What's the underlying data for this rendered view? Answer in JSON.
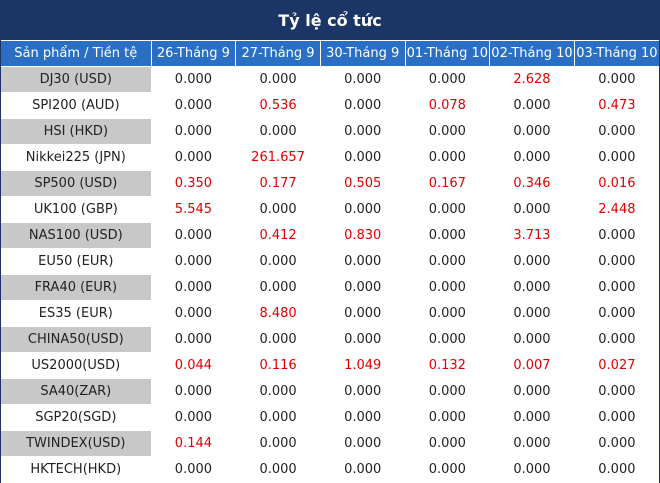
{
  "title": "Tỷ lệ cổ tức",
  "headers": [
    "Sản phẩm / Tiền tệ",
    "26-Tháng 9",
    "27-Tháng 9",
    "30-Tháng 9",
    "01-Tháng 10",
    "02-Tháng 10",
    "03-Tháng 10"
  ],
  "highlight_color": "#e00000",
  "rows": [
    {
      "name": "DJ30 (USD)",
      "values": [
        "0.000",
        "0.000",
        "0.000",
        "0.000",
        "2.628",
        "0.000"
      ]
    },
    {
      "name": "SPI200 (AUD)",
      "values": [
        "0.000",
        "0.536",
        "0.000",
        "0.078",
        "0.000",
        "0.473"
      ]
    },
    {
      "name": "HSI (HKD)",
      "values": [
        "0.000",
        "0.000",
        "0.000",
        "0.000",
        "0.000",
        "0.000"
      ]
    },
    {
      "name": "Nikkei225 (JPN)",
      "values": [
        "0.000",
        "261.657",
        "0.000",
        "0.000",
        "0.000",
        "0.000"
      ]
    },
    {
      "name": "SP500 (USD)",
      "values": [
        "0.350",
        "0.177",
        "0.505",
        "0.167",
        "0.346",
        "0.016"
      ]
    },
    {
      "name": "UK100 (GBP)",
      "values": [
        "5.545",
        "0.000",
        "0.000",
        "0.000",
        "0.000",
        "2.448"
      ]
    },
    {
      "name": "NAS100 (USD)",
      "values": [
        "0.000",
        "0.412",
        "0.830",
        "0.000",
        "3.713",
        "0.000"
      ]
    },
    {
      "name": "EU50 (EUR)",
      "values": [
        "0.000",
        "0.000",
        "0.000",
        "0.000",
        "0.000",
        "0.000"
      ]
    },
    {
      "name": "FRA40 (EUR)",
      "values": [
        "0.000",
        "0.000",
        "0.000",
        "0.000",
        "0.000",
        "0.000"
      ]
    },
    {
      "name": "ES35 (EUR)",
      "values": [
        "0.000",
        "8.480",
        "0.000",
        "0.000",
        "0.000",
        "0.000"
      ]
    },
    {
      "name": "CHINA50(USD)",
      "values": [
        "0.000",
        "0.000",
        "0.000",
        "0.000",
        "0.000",
        "0.000"
      ]
    },
    {
      "name": "US2000(USD)",
      "values": [
        "0.044",
        "0.116",
        "1.049",
        "0.132",
        "0.007",
        "0.027"
      ]
    },
    {
      "name": "SA40(ZAR)",
      "values": [
        "0.000",
        "0.000",
        "0.000",
        "0.000",
        "0.000",
        "0.000"
      ]
    },
    {
      "name": "SGP20(SGD)",
      "values": [
        "0.000",
        "0.000",
        "0.000",
        "0.000",
        "0.000",
        "0.000"
      ]
    },
    {
      "name": "TWINDEX(USD)",
      "values": [
        "0.144",
        "0.000",
        "0.000",
        "0.000",
        "0.000",
        "0.000"
      ]
    },
    {
      "name": "HKTECH(HKD)",
      "values": [
        "0.000",
        "0.000",
        "0.000",
        "0.000",
        "0.000",
        "0.000"
      ]
    }
  ]
}
